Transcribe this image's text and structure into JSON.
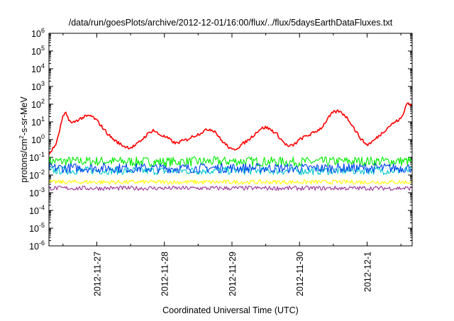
{
  "chart_data": {
    "type": "line",
    "title": "/data/run/goesPlots/archive/2012-12-01/16:00/flux/../flux/5daysEarthDataFluxes.txt",
    "xlabel": "Coordinated Universal Time (UTC)",
    "ylabel": {
      "prefix": "protons/cm",
      "sup": "2",
      "suffix": "-s-sr-MeV"
    },
    "y_scale": "log",
    "ylim": [
      1e-06,
      1000000.0
    ],
    "y_ticks": [
      {
        "value": 1e-06,
        "base": "10",
        "exp": "-6"
      },
      {
        "value": 1e-05,
        "base": "10",
        "exp": "-5"
      },
      {
        "value": 0.0001,
        "base": "10",
        "exp": "-4"
      },
      {
        "value": 0.001,
        "base": "10",
        "exp": "-3"
      },
      {
        "value": 0.01,
        "base": "10",
        "exp": "-2"
      },
      {
        "value": 0.1,
        "base": "10",
        "exp": "-1"
      },
      {
        "value": 1.0,
        "base": "10",
        "exp": "0"
      },
      {
        "value": 10.0,
        "base": "10",
        "exp": "1"
      },
      {
        "value": 100.0,
        "base": "10",
        "exp": "2"
      },
      {
        "value": 1000.0,
        "base": "10",
        "exp": "3"
      },
      {
        "value": 10000.0,
        "base": "10",
        "exp": "4"
      },
      {
        "value": 100000.0,
        "base": "10",
        "exp": "5"
      },
      {
        "value": 1000000.0,
        "base": "10",
        "exp": "6"
      }
    ],
    "xlim": [
      "2012-11-26T07:00",
      "2012-12-01T16:00"
    ],
    "x_ticks": [
      {
        "value": "2012-11-27T00:00",
        "label": "2012-11-27"
      },
      {
        "value": "2012-11-28T00:00",
        "label": "2012-11-28"
      },
      {
        "value": "2012-11-29T00:00",
        "label": "2012-11-29"
      },
      {
        "value": "2012-11-30T00:00",
        "label": "2012-11-30"
      },
      {
        "value": "2012-12-01T00:00",
        "label": "2012-12-1"
      }
    ],
    "grid": false,
    "legend": "none",
    "series": [
      {
        "color": "#ff0000",
        "points": [
          [
            "2012-11-26T07:00",
            0.15
          ],
          [
            "2012-11-26T08:00",
            0.25
          ],
          [
            "2012-11-26T09:00",
            0.4
          ],
          [
            "2012-11-26T10:00",
            0.9
          ],
          [
            "2012-11-26T11:00",
            5
          ],
          [
            "2012-11-26T12:00",
            20
          ],
          [
            "2012-11-26T13:00",
            30
          ],
          [
            "2012-11-26T14:00",
            15
          ],
          [
            "2012-11-26T15:00",
            8
          ],
          [
            "2012-11-26T16:00",
            10
          ],
          [
            "2012-11-26T18:00",
            15
          ],
          [
            "2012-11-26T20:00",
            20
          ],
          [
            "2012-11-26T22:00",
            22
          ],
          [
            "2012-11-27T00:00",
            12
          ],
          [
            "2012-11-27T02:00",
            5
          ],
          [
            "2012-11-27T04:00",
            2
          ],
          [
            "2012-11-27T06:00",
            1
          ],
          [
            "2012-11-27T08:00",
            0.6
          ],
          [
            "2012-11-27T10:00",
            0.4
          ],
          [
            "2012-11-27T12:00",
            0.35
          ],
          [
            "2012-11-27T14:00",
            0.5
          ],
          [
            "2012-11-27T16:00",
            1
          ],
          [
            "2012-11-27T18:00",
            2
          ],
          [
            "2012-11-27T20:00",
            3.5
          ],
          [
            "2012-11-27T22:00",
            2
          ],
          [
            "2012-11-28T00:00",
            1.5
          ],
          [
            "2012-11-28T02:00",
            1
          ],
          [
            "2012-11-28T04:00",
            0.6
          ],
          [
            "2012-11-28T06:00",
            0.8
          ],
          [
            "2012-11-28T08:00",
            1
          ],
          [
            "2012-11-28T10:00",
            1.5
          ],
          [
            "2012-11-28T12:00",
            2
          ],
          [
            "2012-11-28T14:00",
            3
          ],
          [
            "2012-11-28T16:00",
            4
          ],
          [
            "2012-11-28T18:00",
            3
          ],
          [
            "2012-11-28T20:00",
            1
          ],
          [
            "2012-11-28T22:00",
            0.5
          ],
          [
            "2012-11-29T00:00",
            0.25
          ],
          [
            "2012-11-29T02:00",
            0.35
          ],
          [
            "2012-11-29T04:00",
            0.6
          ],
          [
            "2012-11-29T06:00",
            1
          ],
          [
            "2012-11-29T08:00",
            2
          ],
          [
            "2012-11-29T10:00",
            4
          ],
          [
            "2012-11-29T12:00",
            5
          ],
          [
            "2012-11-29T14:00",
            3.5
          ],
          [
            "2012-11-29T16:00",
            2
          ],
          [
            "2012-11-29T18:00",
            0.8
          ],
          [
            "2012-11-29T20:00",
            0.4
          ],
          [
            "2012-11-29T22:00",
            0.5
          ],
          [
            "2012-11-30T00:00",
            1
          ],
          [
            "2012-11-30T02:00",
            1.5
          ],
          [
            "2012-11-30T04:00",
            2
          ],
          [
            "2012-11-30T06:00",
            3
          ],
          [
            "2012-11-30T08:00",
            5
          ],
          [
            "2012-11-30T10:00",
            15
          ],
          [
            "2012-11-30T12:00",
            35
          ],
          [
            "2012-11-30T14:00",
            40
          ],
          [
            "2012-11-30T16:00",
            25
          ],
          [
            "2012-11-30T18:00",
            10
          ],
          [
            "2012-11-30T20:00",
            3
          ],
          [
            "2012-11-30T22:00",
            1
          ],
          [
            "2012-12-01T00:00",
            0.5
          ],
          [
            "2012-12-01T02:00",
            0.8
          ],
          [
            "2012-12-01T04:00",
            1.5
          ],
          [
            "2012-12-01T06:00",
            3
          ],
          [
            "2012-12-01T08:00",
            6
          ],
          [
            "2012-12-01T10:00",
            10
          ],
          [
            "2012-12-01T12:00",
            15
          ],
          [
            "2012-12-01T13:00",
            30
          ],
          [
            "2012-12-01T14:00",
            120
          ],
          [
            "2012-12-01T15:00",
            100
          ],
          [
            "2012-12-01T16:00",
            90
          ]
        ]
      },
      {
        "color": "#00ee00",
        "points": [
          [
            "2012-11-26T07:00",
            0.06
          ],
          [
            "2012-11-27T00:00",
            0.06
          ],
          [
            "2012-11-28T00:00",
            0.055
          ],
          [
            "2012-11-29T00:00",
            0.06
          ],
          [
            "2012-11-30T00:00",
            0.055
          ],
          [
            "2012-12-01T00:00",
            0.06
          ],
          [
            "2012-12-01T16:00",
            0.06
          ]
        ]
      },
      {
        "color": "#00c8c8",
        "points": [
          [
            "2012-11-26T07:00",
            0.018
          ],
          [
            "2012-11-27T00:00",
            0.018
          ],
          [
            "2012-11-28T00:00",
            0.017
          ],
          [
            "2012-11-29T00:00",
            0.018
          ],
          [
            "2012-11-30T00:00",
            0.017
          ],
          [
            "2012-12-01T00:00",
            0.018
          ],
          [
            "2012-12-01T16:00",
            0.018
          ]
        ]
      },
      {
        "color": "#0044ee",
        "points": [
          [
            "2012-11-26T07:00",
            0.025
          ],
          [
            "2012-11-27T00:00",
            0.025
          ],
          [
            "2012-11-28T00:00",
            0.024
          ],
          [
            "2012-11-29T00:00",
            0.025
          ],
          [
            "2012-11-30T00:00",
            0.024
          ],
          [
            "2012-12-01T00:00",
            0.025
          ],
          [
            "2012-12-01T16:00",
            0.025
          ]
        ]
      },
      {
        "color": "#ffff00",
        "points": [
          [
            "2012-11-26T07:00",
            0.004
          ],
          [
            "2012-11-27T00:00",
            0.004
          ],
          [
            "2012-11-28T00:00",
            0.004
          ],
          [
            "2012-11-29T00:00",
            0.004
          ],
          [
            "2012-11-30T00:00",
            0.004
          ],
          [
            "2012-12-01T00:00",
            0.004
          ],
          [
            "2012-12-01T16:00",
            0.004
          ]
        ]
      },
      {
        "color": "#993399",
        "points": [
          [
            "2012-11-26T07:00",
            0.0018
          ],
          [
            "2012-11-27T00:00",
            0.0018
          ],
          [
            "2012-11-28T00:00",
            0.0018
          ],
          [
            "2012-11-29T00:00",
            0.0018
          ],
          [
            "2012-11-30T00:00",
            0.0018
          ],
          [
            "2012-12-01T00:00",
            0.0018
          ],
          [
            "2012-12-01T16:00",
            0.0018
          ]
        ]
      }
    ]
  }
}
